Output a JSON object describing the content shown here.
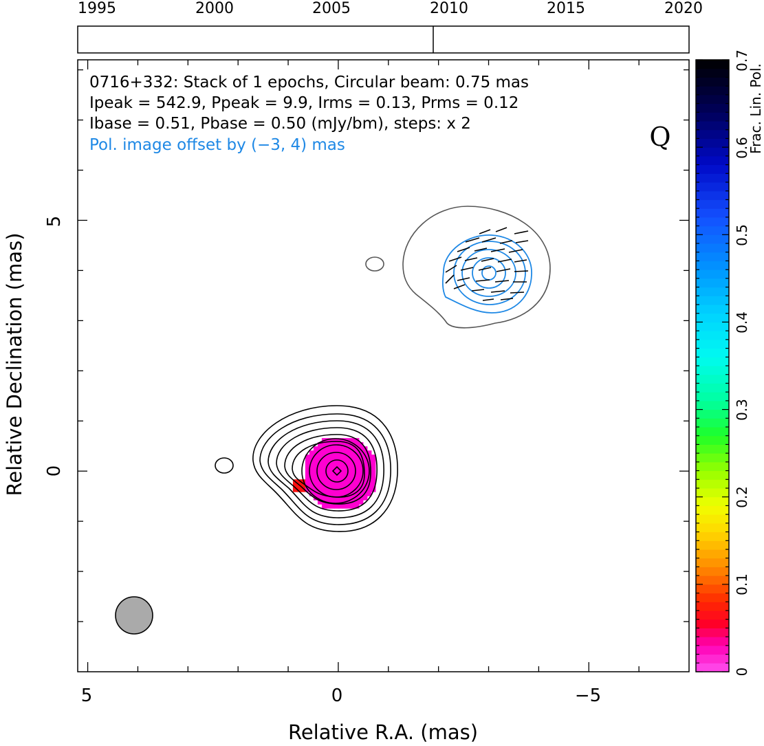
{
  "timeline": {
    "years": [
      "1995",
      "2000",
      "2005",
      "2010",
      "2015",
      "2020"
    ],
    "year_values": [
      1995,
      2000,
      2005,
      2010,
      2015,
      2020
    ],
    "range": [
      1994.0,
      2020.3
    ],
    "epoch_marks": [
      2009.45
    ]
  },
  "plot": {
    "info_lines": [
      "0716+332: Stack of 1 epochs, Circular beam: 0.75 mas",
      "Ipeak = 542.9, Ppeak = 9.9, Irms = 0.13, Prms = 0.12",
      "Ibase = 0.51, Pbase = 0.50 (mJy/bm), steps: x 2"
    ],
    "offset_note": "Pol. image offset by (−3, 4) mas",
    "offset_color": "#1e88e5",
    "band_label": "Q",
    "xlabel": "Relative R.A. (mas)",
    "ylabel": "Relative Declination (mas)",
    "xticks": [
      "5",
      "0",
      "−5"
    ],
    "xtick_values": [
      5,
      0,
      -5
    ],
    "yticks": [
      "5",
      "0"
    ],
    "ytick_values": [
      5,
      0
    ]
  },
  "colorbar": {
    "title": "Frac. Lin. Pol.",
    "ticks": [
      "0",
      "0.1",
      "0.2",
      "0.3",
      "0.4",
      "0.5",
      "0.6",
      "0.7"
    ],
    "tick_values": [
      0,
      0.1,
      0.2,
      0.3,
      0.4,
      0.5,
      0.6,
      0.7
    ],
    "range": [
      0,
      0.7
    ]
  },
  "chart_data": {
    "type": "heatmap",
    "source": "0716+332",
    "xlim": [
      5.2,
      -7.0
    ],
    "ylim": [
      -4.0,
      8.2
    ],
    "beam": {
      "ra": 4.0,
      "dec": -3.0,
      "diameter_mas": 0.75
    },
    "total_intensity_contours": {
      "center": [
        0,
        0
      ],
      "levels": 10,
      "color": "#000000"
    },
    "polarization_contours": {
      "center": [
        -3.0,
        4.0
      ],
      "levels": 4,
      "color": "#1e88e5",
      "outer_contour_color": "#555555"
    },
    "frac_pol_peak": 0.01,
    "colors": {
      "frac_pol_low": "#ff00d0",
      "frac_pol_edge": "#ff1010",
      "beam_fill": "#aaaaaa"
    }
  }
}
